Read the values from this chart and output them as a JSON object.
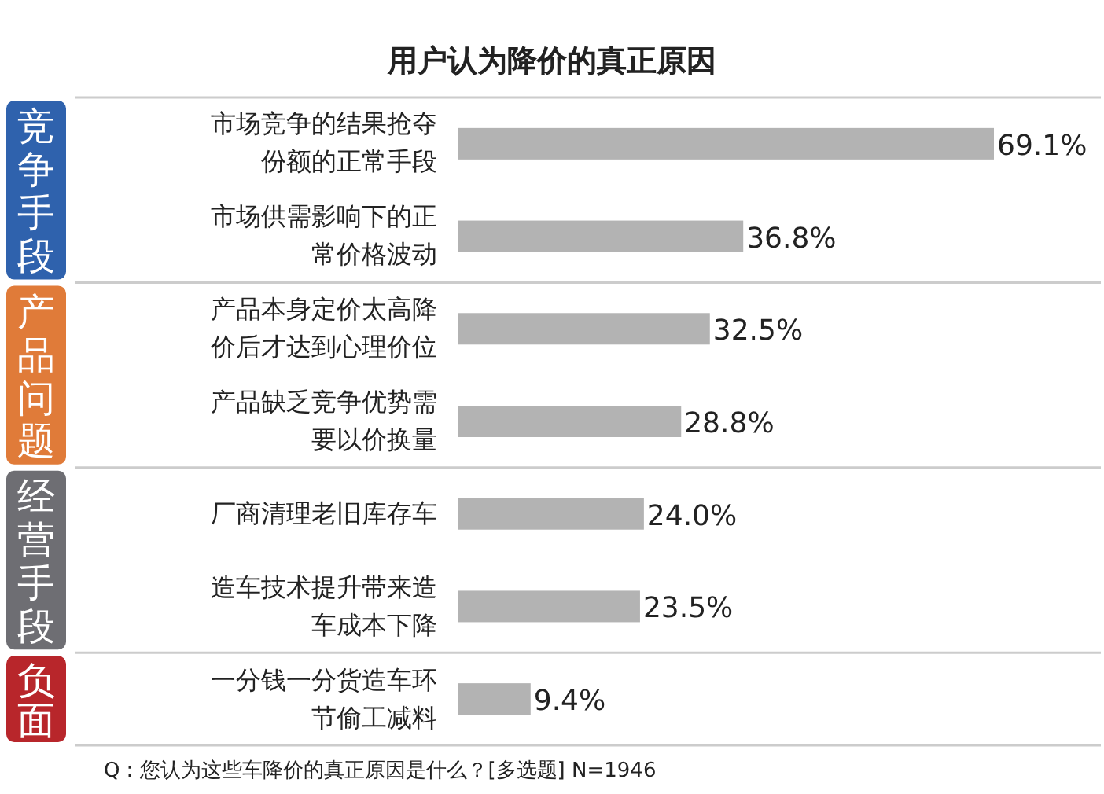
{
  "chart_data": {
    "type": "bar",
    "orientation": "horizontal",
    "title": "用户认为降价的真正原因",
    "categories": [
      "市场竞争的结果抢夺份额的正常手段",
      "市场供需影响下的正常价格波动",
      "产品本身定价太高降价后才达到心理价位",
      "产品缺乏竞争优势需要以价换量",
      "厂商清理老旧库存车",
      "造车技术提升带来造车成本下降",
      "一分钱一分货造车环节偷工减料"
    ],
    "values": [
      69.1,
      36.8,
      32.5,
      28.8,
      24.0,
      23.5,
      9.4
    ],
    "value_labels": [
      "69.1%",
      "36.8%",
      "32.5%",
      "28.8%",
      "24.0%",
      "23.5%",
      "9.4%"
    ],
    "color": "#b3b3b3",
    "annotations": [
      "竞争手段",
      "产品问题",
      "经营手段",
      "负面",
      "Q：您认为这些车降价的真正原因是什么？[多选题] N=1946"
    ]
  }
}
